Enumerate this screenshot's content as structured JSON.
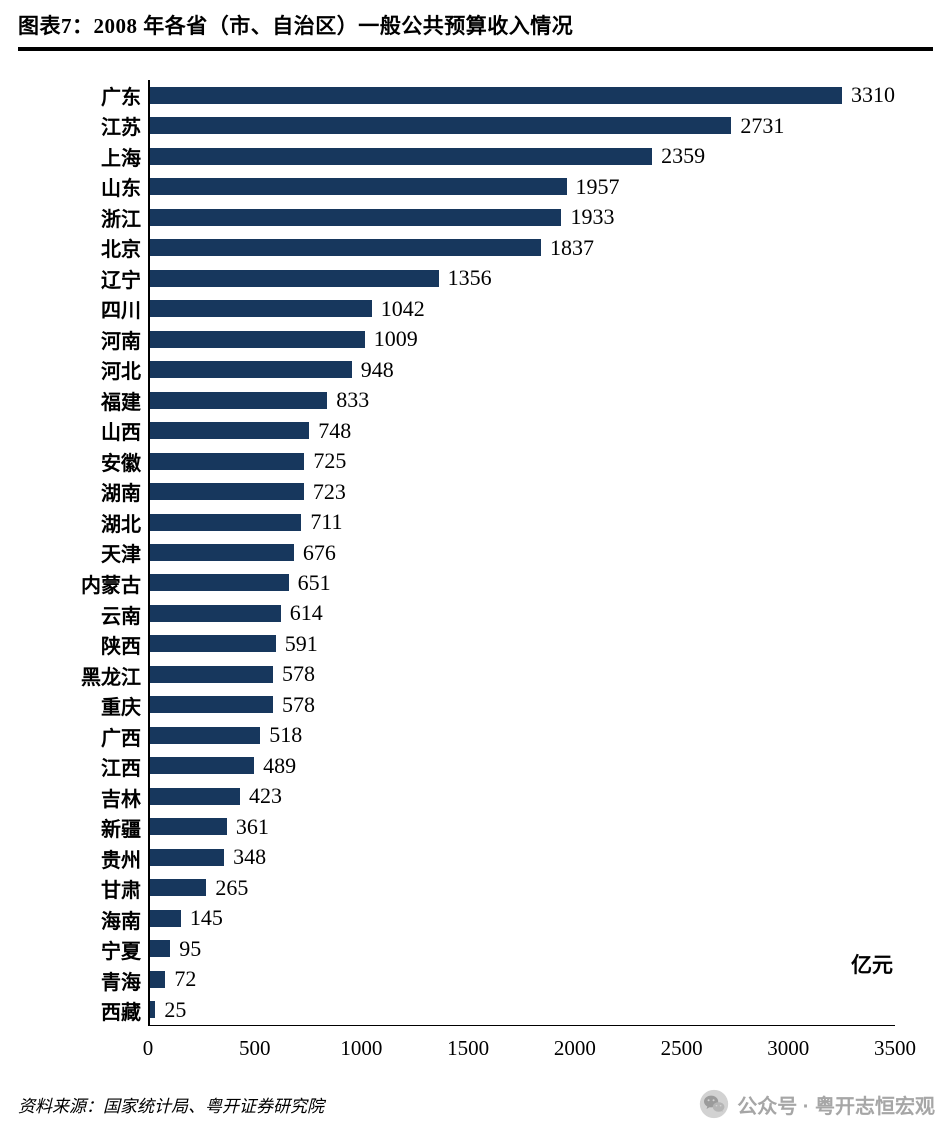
{
  "header": {
    "title": "图表7：2008 年各省（市、自治区）一般公共预算收入情况"
  },
  "chart_data": {
    "type": "bar",
    "orientation": "horizontal",
    "title": "图表7：2008 年各省（市、自治区）一般公共预算收入情况",
    "categories": [
      "广东",
      "江苏",
      "上海",
      "山东",
      "浙江",
      "北京",
      "辽宁",
      "四川",
      "河南",
      "河北",
      "福建",
      "山西",
      "安徽",
      "湖南",
      "湖北",
      "天津",
      "内蒙古",
      "云南",
      "陕西",
      "黑龙江",
      "重庆",
      "广西",
      "江西",
      "吉林",
      "新疆",
      "贵州",
      "甘肃",
      "海南",
      "宁夏",
      "青海",
      "西藏"
    ],
    "values": [
      3310,
      2731,
      2359,
      1957,
      1933,
      1837,
      1356,
      1042,
      1009,
      948,
      833,
      748,
      725,
      723,
      711,
      676,
      651,
      614,
      591,
      578,
      578,
      518,
      489,
      423,
      361,
      348,
      265,
      145,
      95,
      72,
      25
    ],
    "xlim": [
      0,
      3500
    ],
    "x_ticks": [
      0,
      500,
      1000,
      1500,
      2000,
      2500,
      3000,
      3500
    ],
    "unit_label": "亿元",
    "bar_color": "#17375D",
    "grid": false,
    "legend": false
  },
  "footer": {
    "source": "资料来源：国家统计局、粤开证券研究院",
    "watermark_icon": "wechat-icon",
    "watermark": "公众号 · 粤开志恒宏观"
  }
}
